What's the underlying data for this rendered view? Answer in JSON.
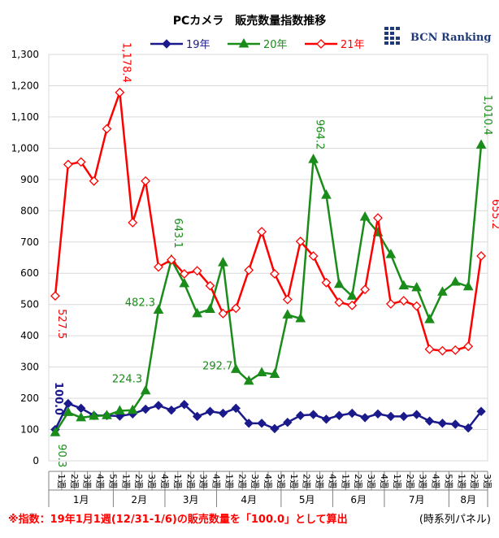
{
  "chart_data": {
    "type": "line",
    "title": "PCカメラ　販売数量指数推移",
    "brand": "BCN Ranking",
    "ylim": [
      0,
      1300
    ],
    "yticks": [
      "0",
      "100",
      "200",
      "300",
      "400",
      "500",
      "600",
      "700",
      "800",
      "900",
      "1,000",
      "1,100",
      "1,200",
      "1,300"
    ],
    "grid": true,
    "legend_position": "top",
    "categories": [
      "1週",
      "2週",
      "3週",
      "4週",
      "5週",
      "1週",
      "2週",
      "3週",
      "4週",
      "1週",
      "2週",
      "3週",
      "4週",
      "1週",
      "2週",
      "3週",
      "4週",
      "5週",
      "1週",
      "2週",
      "3週",
      "4週",
      "1週",
      "2週",
      "3週",
      "4週",
      "1週",
      "2週",
      "3週",
      "4週",
      "5週",
      "1週",
      "2週",
      "3週"
    ],
    "months": [
      {
        "label": "1月",
        "start": 0,
        "end": 4
      },
      {
        "label": "2月",
        "start": 5,
        "end": 8
      },
      {
        "label": "3月",
        "start": 9,
        "end": 12
      },
      {
        "label": "4月",
        "start": 13,
        "end": 17
      },
      {
        "label": "5月",
        "start": 18,
        "end": 21
      },
      {
        "label": "6月",
        "start": 22,
        "end": 25
      },
      {
        "label": "7月",
        "start": 26,
        "end": 30
      },
      {
        "label": "8月",
        "start": 31,
        "end": 33
      }
    ],
    "series": [
      {
        "name": "19年",
        "color": "#1a1a8c",
        "marker": "diamond-filled",
        "values": [
          100,
          183,
          168,
          145,
          145,
          143,
          150,
          165,
          177,
          162,
          180,
          142,
          158,
          152,
          168,
          120,
          120,
          103,
          123,
          145,
          148,
          133,
          145,
          152,
          138,
          150,
          142,
          142,
          148,
          127,
          120,
          117,
          105,
          158
        ]
      },
      {
        "name": "20年",
        "color": "#1a8c1a",
        "marker": "triangle",
        "values": [
          90.3,
          155,
          138,
          143,
          145,
          160,
          162,
          224.3,
          482.3,
          643.1,
          567,
          471,
          485,
          634,
          292.7,
          255,
          282,
          277,
          467,
          455,
          964.2,
          850,
          565,
          527,
          780,
          730,
          660,
          560,
          554,
          452,
          540,
          572,
          557,
          1010.4
        ]
      },
      {
        "name": "21年",
        "color": "#ff0000",
        "marker": "diamond-open",
        "values": [
          527.5,
          948,
          956,
          895,
          1062,
          1178.4,
          762,
          895,
          620,
          643,
          598,
          608,
          560,
          471,
          488,
          610,
          733,
          598,
          516,
          702,
          655,
          570,
          507,
          497,
          548,
          777,
          502,
          512,
          495,
          357,
          352,
          354,
          366,
          655.2
        ]
      }
    ],
    "annotations": [
      {
        "text": "100.0",
        "series": "19年",
        "index": 0,
        "color": "#1a1a8c"
      },
      {
        "text": "90.3",
        "series": "20年",
        "index": 0,
        "color": "#1a8c1a"
      },
      {
        "text": "224.3",
        "series": "20年",
        "index": 7,
        "color": "#1a8c1a"
      },
      {
        "text": "482.3",
        "series": "20年",
        "index": 8,
        "color": "#1a8c1a"
      },
      {
        "text": "643.1",
        "series": "20年",
        "index": 9,
        "color": "#1a8c1a"
      },
      {
        "text": "292.7",
        "series": "20年",
        "index": 14,
        "color": "#1a8c1a"
      },
      {
        "text": "964.2",
        "series": "20年",
        "index": 20,
        "color": "#1a8c1a"
      },
      {
        "text": "1,010.4",
        "series": "20年",
        "index": 33,
        "color": "#1a8c1a"
      },
      {
        "text": "527.5",
        "series": "21年",
        "index": 0,
        "color": "#ff0000"
      },
      {
        "text": "1,178.4",
        "series": "21年",
        "index": 5,
        "color": "#ff0000"
      },
      {
        "text": "655.2",
        "series": "21年",
        "index": 33,
        "color": "#ff0000"
      }
    ],
    "footnote": "※指数：19年1月1週(12/31-1/6)の販売数量を「100.0」として算出",
    "footnote_right": "(時系列パネル)"
  }
}
